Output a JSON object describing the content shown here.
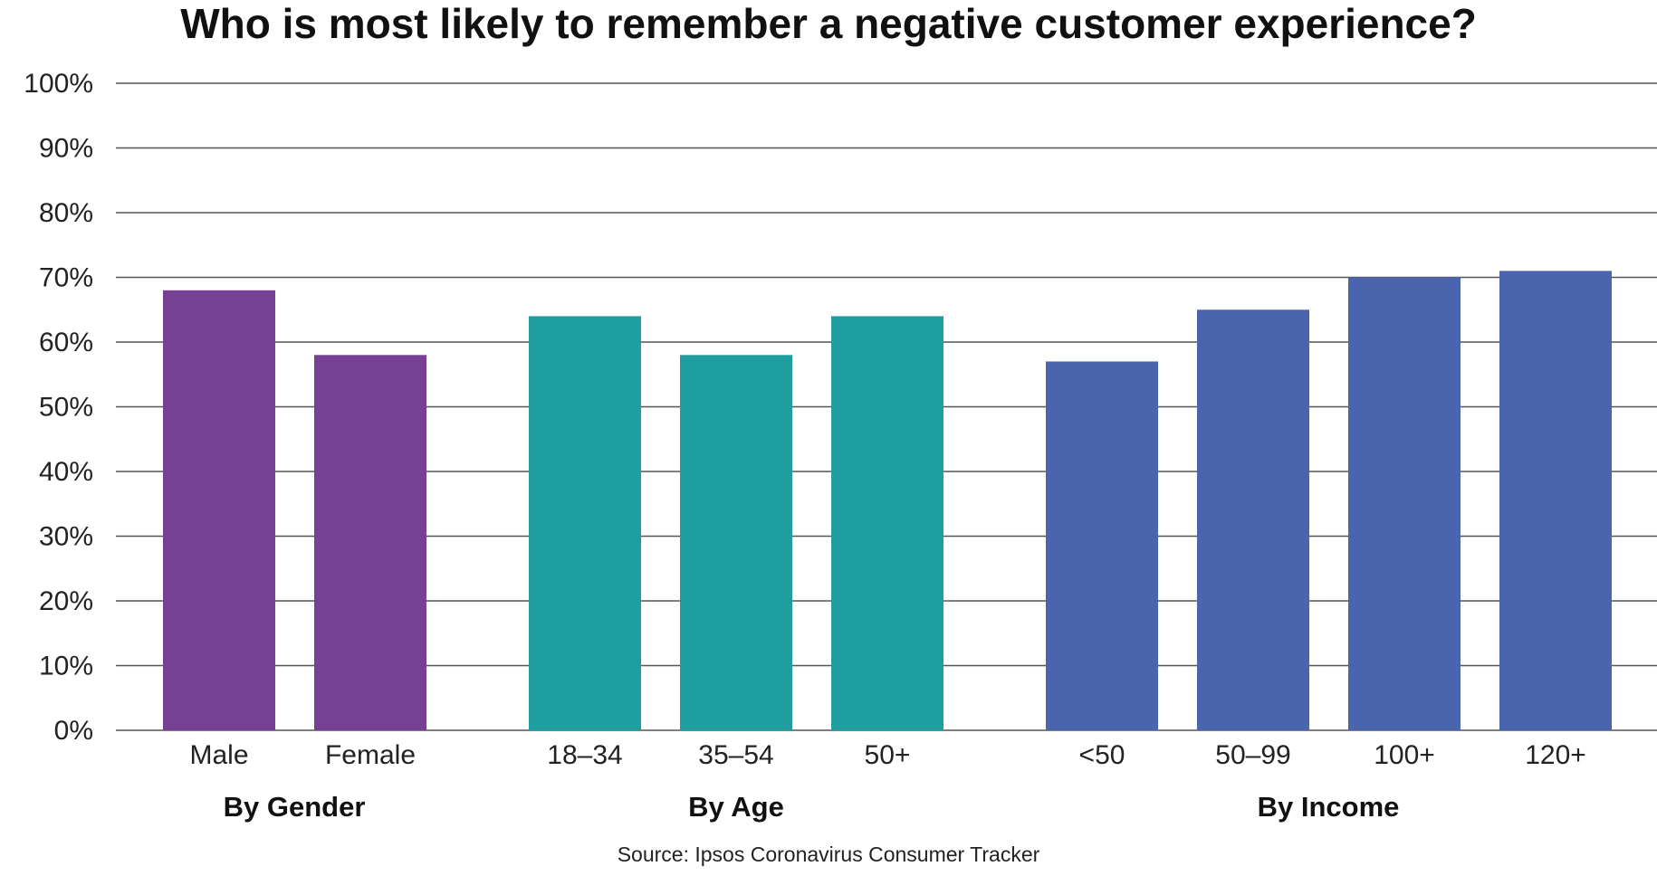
{
  "chart_data": {
    "type": "bar",
    "title": "Who is most likely to remember a negative customer experience?",
    "ylim": [
      0,
      100
    ],
    "yticks": [
      "0%",
      "10%",
      "20%",
      "30%",
      "40%",
      "50%",
      "60%",
      "70%",
      "80%",
      "90%",
      "100%"
    ],
    "grid": true,
    "groups": [
      {
        "label": "By Gender",
        "color": "#764194",
        "categories": [
          "Male",
          "Female"
        ],
        "values": [
          68,
          58
        ]
      },
      {
        "label": "By Age",
        "color": "#1e9e9f",
        "categories": [
          "18–34",
          "35–54",
          "50+"
        ],
        "values": [
          64,
          58,
          64
        ]
      },
      {
        "label": "By Income",
        "color": "#4a64ad",
        "categories": [
          "<50",
          "50–99",
          "100+",
          "120+"
        ],
        "values": [
          57,
          65,
          70,
          71
        ]
      }
    ],
    "source": "Source: Ipsos Coronavirus Consumer Tracker"
  }
}
